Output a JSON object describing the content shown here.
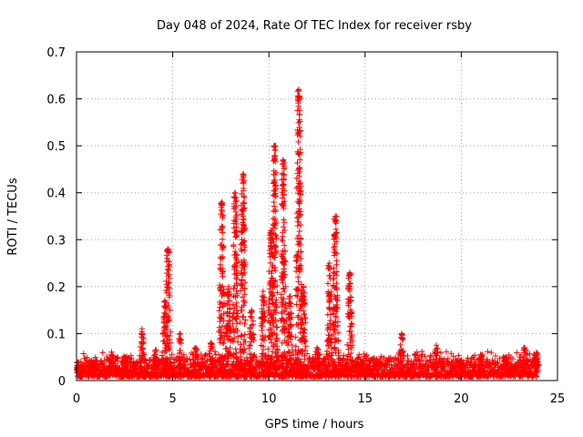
{
  "chart_data": {
    "type": "scatter",
    "title": "Day 048 of 2024, Rate Of TEC Index for receiver rsby",
    "xlabel": "GPS time / hours",
    "ylabel": "ROTI / TECUs",
    "xlim": [
      0,
      25
    ],
    "ylim": [
      0,
      0.7
    ],
    "xticks": [
      "0",
      "5",
      "10",
      "15",
      "20",
      "25"
    ],
    "yticks": [
      "0",
      "0.1",
      "0.2",
      "0.3",
      "0.4",
      "0.5",
      "0.6",
      "0.7"
    ],
    "grid": true,
    "marker": "+",
    "series": [
      {
        "name": "ROTI",
        "color": "#ff0000",
        "baseline": {
          "x_start": 0,
          "x_end": 24,
          "typical_max": 0.04
        },
        "spikes": [
          {
            "x": 0.1,
            "peak": 0.03
          },
          {
            "x": 0.9,
            "peak": 0.04
          },
          {
            "x": 1.8,
            "peak": 0.055
          },
          {
            "x": 2.5,
            "peak": 0.05
          },
          {
            "x": 3.4,
            "peak": 0.11
          },
          {
            "x": 4.1,
            "peak": 0.065
          },
          {
            "x": 4.6,
            "peak": 0.17
          },
          {
            "x": 4.75,
            "peak": 0.28
          },
          {
            "x": 5.4,
            "peak": 0.1
          },
          {
            "x": 6.2,
            "peak": 0.07
          },
          {
            "x": 7.0,
            "peak": 0.08
          },
          {
            "x": 7.55,
            "peak": 0.38
          },
          {
            "x": 7.9,
            "peak": 0.2
          },
          {
            "x": 8.25,
            "peak": 0.4
          },
          {
            "x": 8.65,
            "peak": 0.44
          },
          {
            "x": 9.1,
            "peak": 0.15
          },
          {
            "x": 9.7,
            "peak": 0.19
          },
          {
            "x": 10.1,
            "peak": 0.32
          },
          {
            "x": 10.3,
            "peak": 0.5
          },
          {
            "x": 10.75,
            "peak": 0.47
          },
          {
            "x": 11.1,
            "peak": 0.18
          },
          {
            "x": 11.55,
            "peak": 0.62
          },
          {
            "x": 11.8,
            "peak": 0.2
          },
          {
            "x": 12.5,
            "peak": 0.07
          },
          {
            "x": 13.15,
            "peak": 0.25
          },
          {
            "x": 13.45,
            "peak": 0.35
          },
          {
            "x": 14.2,
            "peak": 0.23
          },
          {
            "x": 14.8,
            "peak": 0.04
          },
          {
            "x": 15.6,
            "peak": 0.045
          },
          {
            "x": 16.9,
            "peak": 0.1
          },
          {
            "x": 18.7,
            "peak": 0.075
          },
          {
            "x": 20.0,
            "peak": 0.04
          },
          {
            "x": 21.0,
            "peak": 0.055
          },
          {
            "x": 22.3,
            "peak": 0.05
          },
          {
            "x": 23.3,
            "peak": 0.07
          },
          {
            "x": 23.9,
            "peak": 0.06
          }
        ]
      }
    ]
  }
}
